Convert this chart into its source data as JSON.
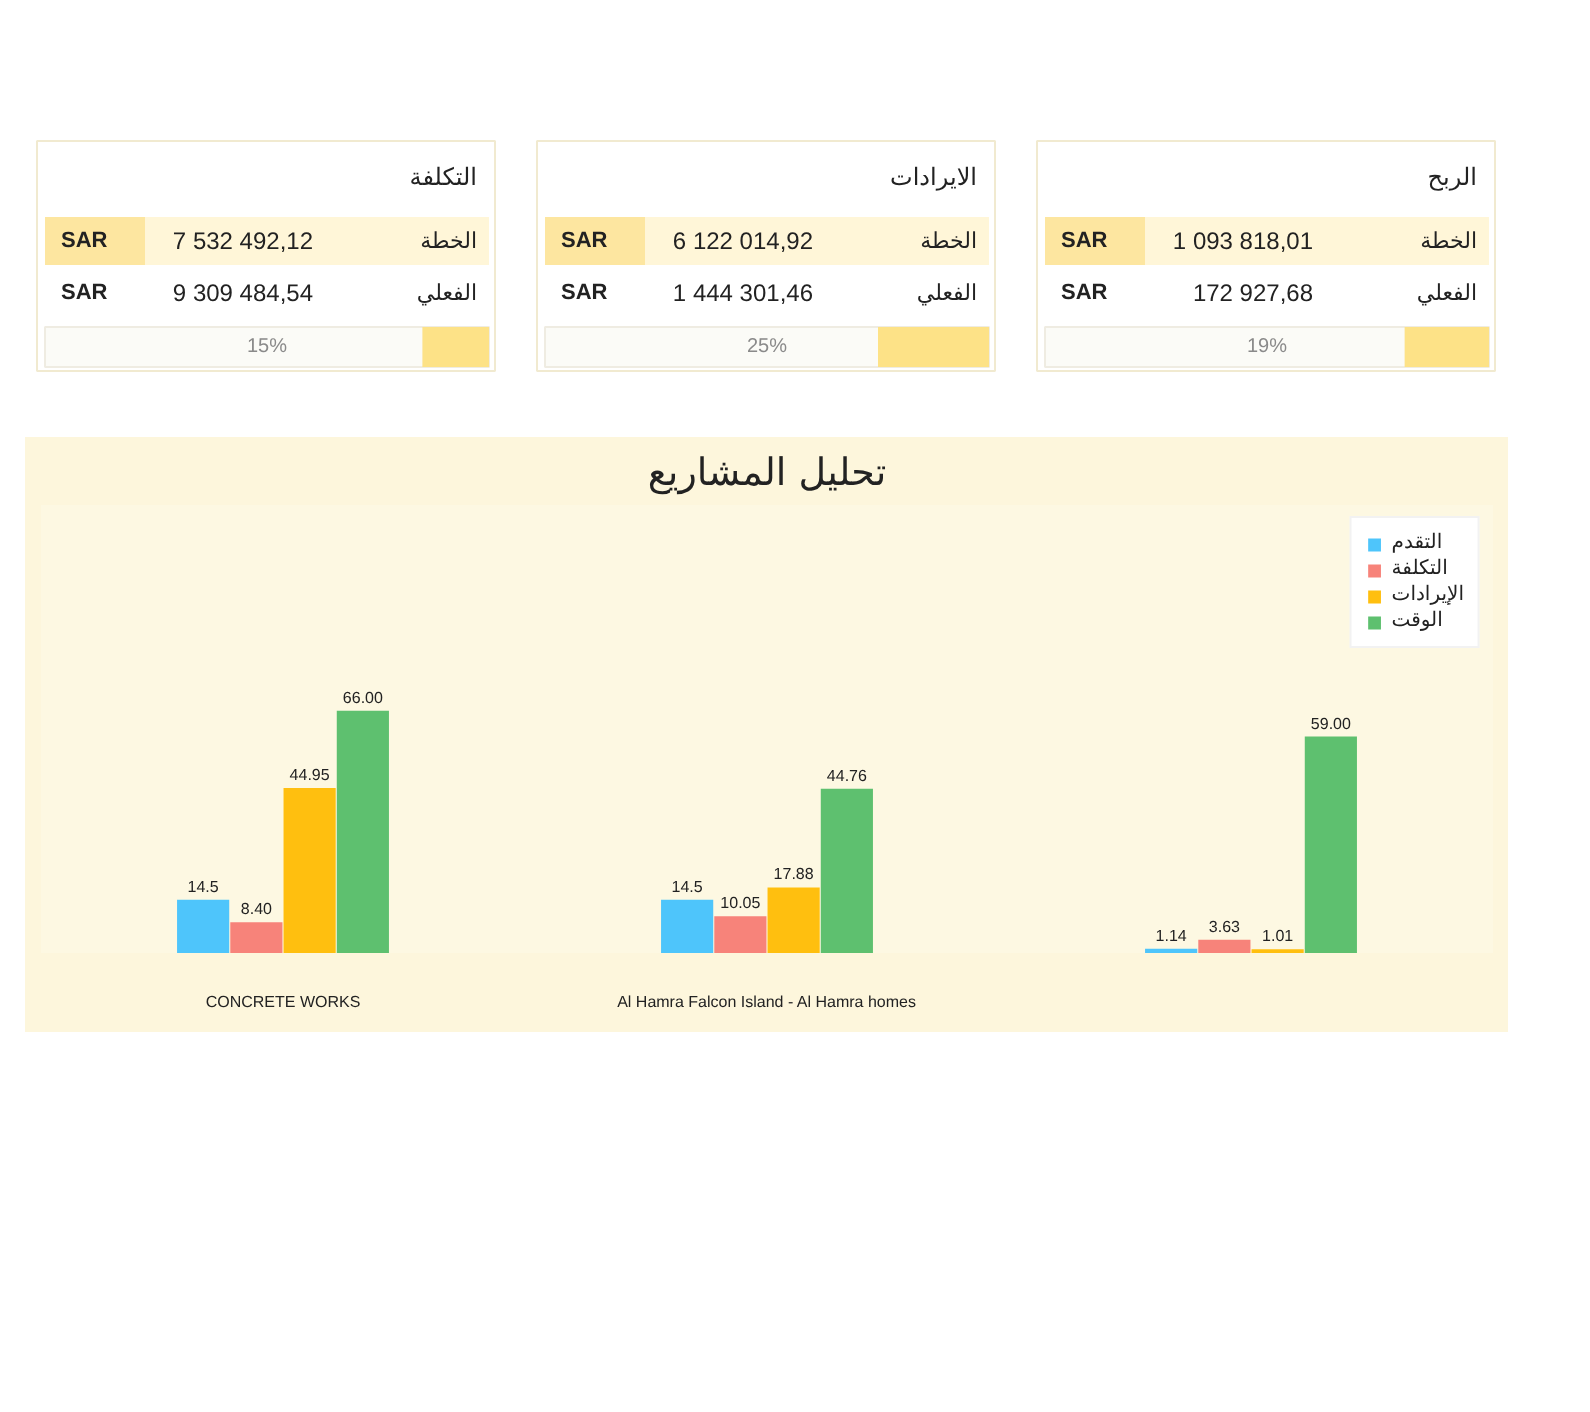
{
  "chart_data": [
    {
      "type": "other",
      "title": "الربح",
      "annotations": [
        "الخطة",
        "1 093 818,01",
        "SAR",
        "الفعلي",
        "172 927,68",
        "SAR"
      ],
      "values": [
        19
      ],
      "value_labels": [
        "19%"
      ]
    },
    {
      "type": "other",
      "title": "الايرادات",
      "annotations": [
        "الخطة",
        "6 122 014,92",
        "SAR",
        "الفعلي",
        "1 444 301,46",
        "SAR"
      ],
      "values": [
        25
      ],
      "value_labels": [
        "25%"
      ]
    },
    {
      "type": "other",
      "title": "التكلفة",
      "annotations": [
        "الخطة",
        "7 532 492,12",
        "SAR",
        "الفعلي",
        "9 309 484,54",
        "SAR"
      ],
      "values": [
        15
      ],
      "value_labels": [
        "15%"
      ]
    },
    {
      "type": "bar",
      "title": "تحليل المشاريع",
      "categories": [
        "CONCRETE WORKS",
        "Al Hamra Falcon Island - Al Hamra homes",
        null
      ],
      "legend": "top right",
      "series": [
        {
          "name": "التقدم",
          "color": "#4ec5fb",
          "values": [
            14.5,
            14.5,
            1.14
          ],
          "value_labels": [
            "14.5",
            "14.5",
            "1.14"
          ]
        },
        {
          "name": "التكلفة",
          "color": "#f7837a",
          "values": [
            8.4,
            10.05,
            3.63
          ],
          "value_labels": [
            "8.40",
            "10.05",
            "3.63"
          ]
        },
        {
          "name": "الإيرادات",
          "color": "#ffbf0f",
          "values": [
            44.95,
            17.88,
            1.01
          ],
          "value_labels": [
            "44.95",
            "17.88",
            "1.01"
          ]
        },
        {
          "name": "الوقت",
          "color": "#5ec06f",
          "values": [
            66.0,
            44.76,
            59.0
          ],
          "value_labels": [
            "66.00",
            "44.76",
            "59.00"
          ]
        }
      ]
    }
  ]
}
